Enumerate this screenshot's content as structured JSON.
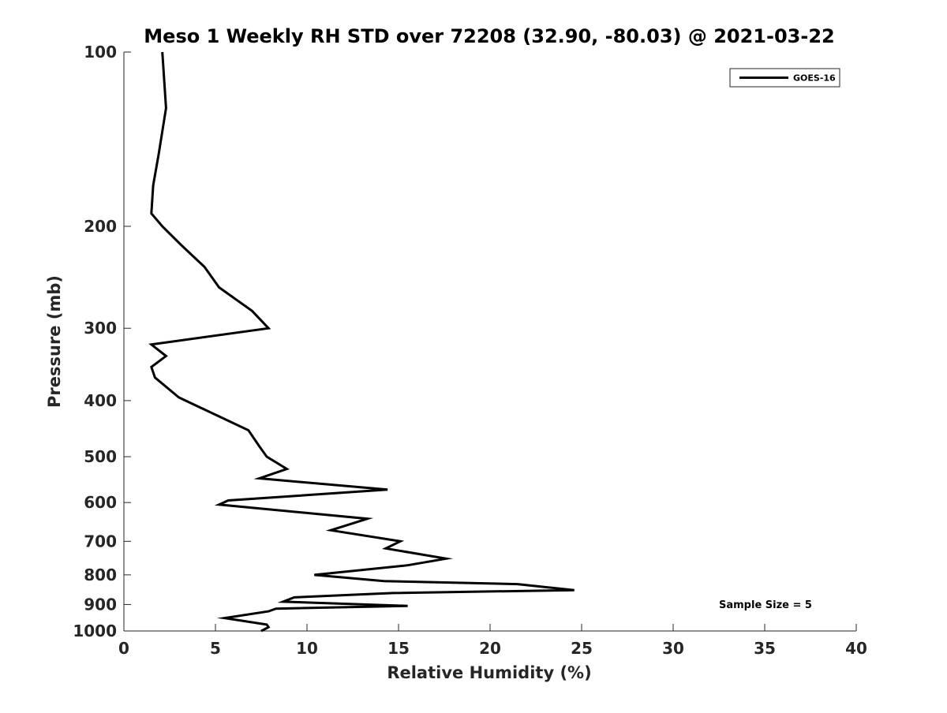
{
  "chart_data": {
    "type": "line",
    "title": "Meso 1 Weekly RH STD over 72208 (32.90, -80.03) @ 2021-03-22",
    "xlabel": "Relative Humidity (%)",
    "ylabel": "Pressure (mb)",
    "xlim": [
      0,
      40
    ],
    "ylim": [
      100,
      1000
    ],
    "y_scale": "log",
    "y_reversed": true,
    "grid": false,
    "x_ticks": [
      0,
      5,
      10,
      15,
      20,
      25,
      30,
      35,
      40
    ],
    "y_ticks": [
      100,
      200,
      300,
      400,
      500,
      600,
      700,
      800,
      900,
      1000
    ],
    "legend": {
      "entries": [
        "GOES-16"
      ],
      "position": "top-right"
    },
    "annotation": "Sample Size = 5",
    "series": [
      {
        "name": "GOES-16",
        "color": "#000000",
        "x": [
          2.1,
          2.3,
          1.9,
          1.6,
          1.5,
          2.1,
          3.1,
          4.4,
          5.2,
          7.0,
          7.9,
          1.5,
          2.3,
          1.5,
          1.7,
          3.0,
          6.8,
          7.4,
          7.8,
          8.9,
          7.4,
          14.4,
          5.7,
          5.2,
          13.3,
          11.3,
          15.1,
          14.3,
          17.6,
          15.5,
          10.4,
          14.2,
          21.5,
          24.6,
          14.7,
          9.3,
          8.7,
          15.5,
          8.3,
          7.9,
          5.5,
          7.8,
          7.9,
          7.5
        ],
        "y": [
          100,
          125,
          150,
          170,
          190,
          200,
          215,
          235,
          255,
          280,
          300,
          320,
          335,
          350,
          365,
          395,
          450,
          480,
          500,
          525,
          545,
          570,
          595,
          605,
          640,
          670,
          700,
          720,
          750,
          770,
          800,
          820,
          830,
          850,
          860,
          875,
          890,
          905,
          915,
          925,
          950,
          975,
          985,
          1000
        ]
      }
    ]
  }
}
